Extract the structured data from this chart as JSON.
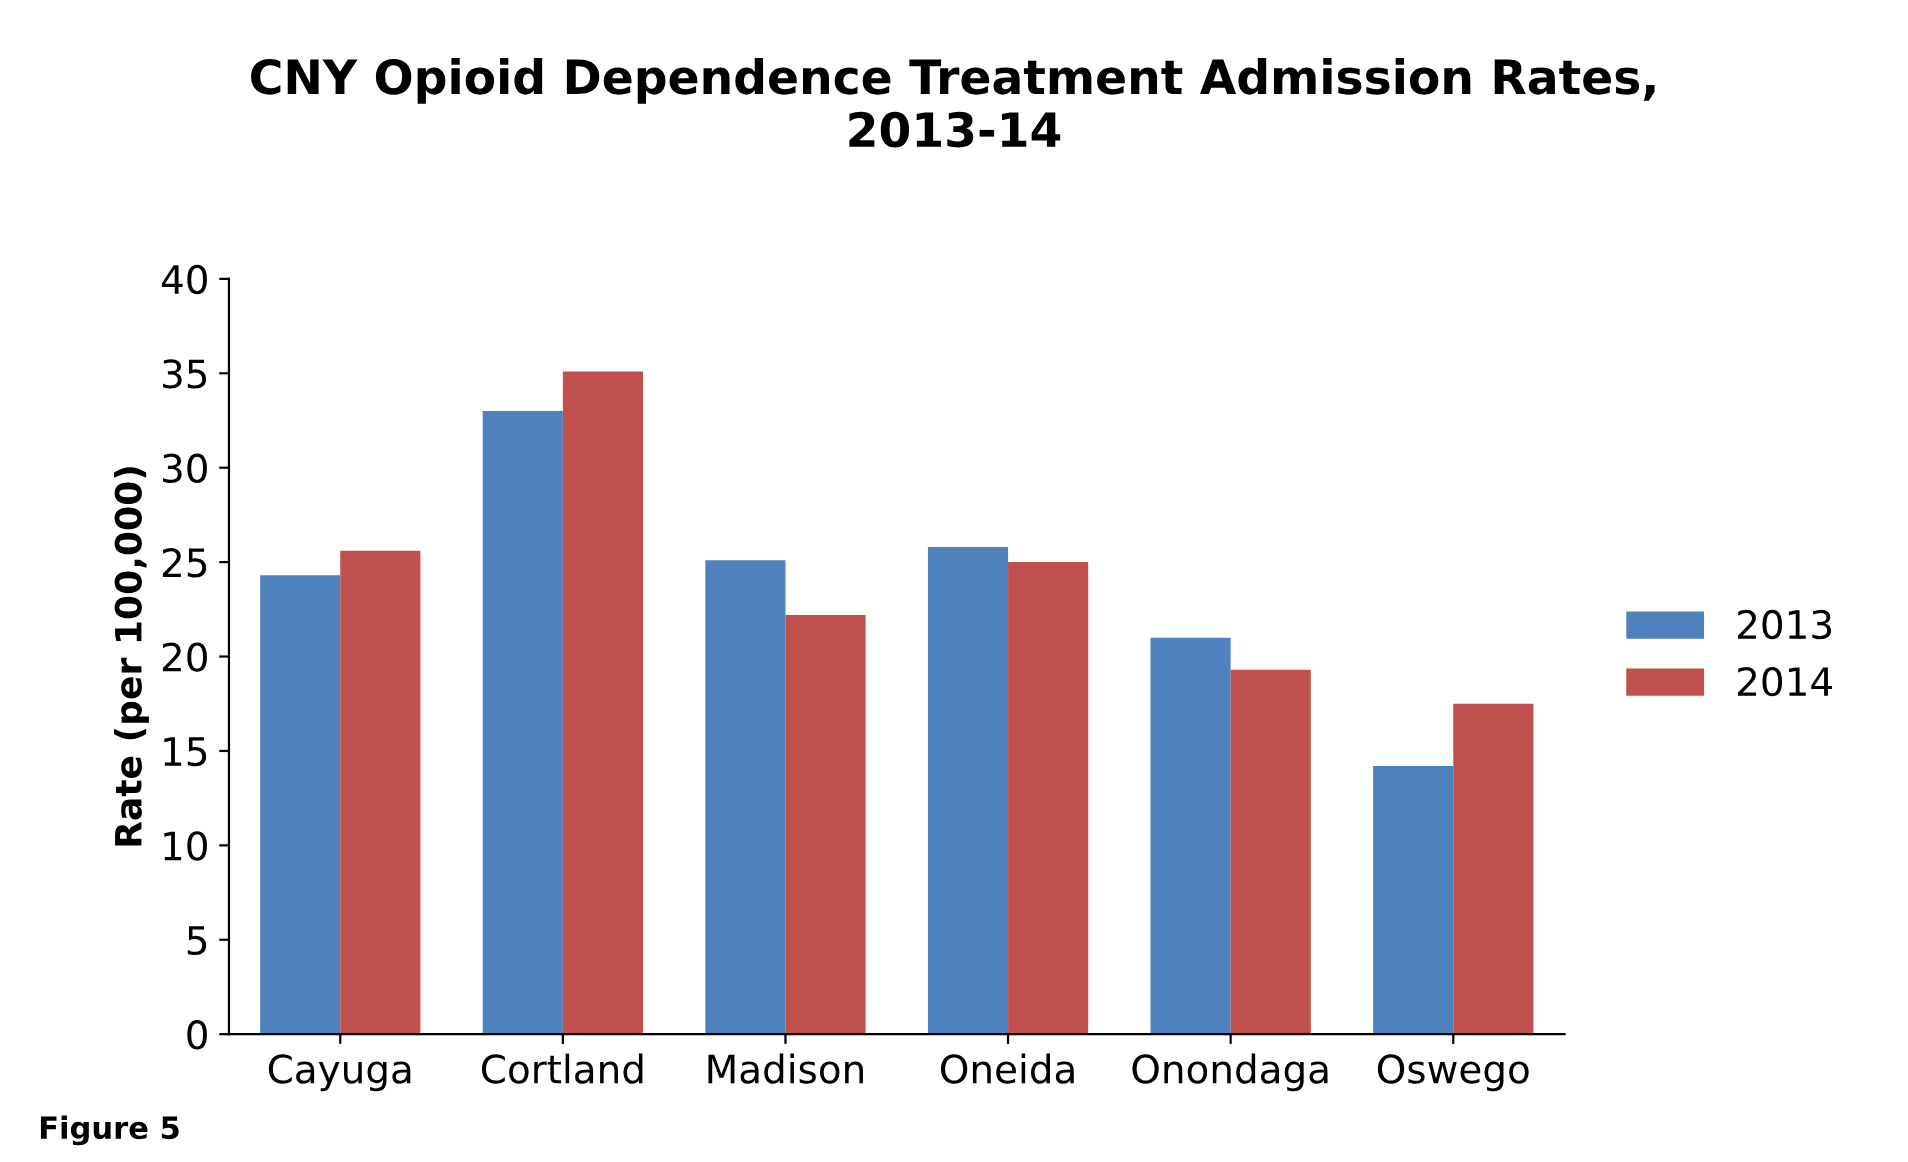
{
  "chart_data": {
    "type": "bar",
    "title": "CNY Opioid Dependence Treatment Admission Rates,\n2013-14",
    "ylabel": "Rate (per 100,000)",
    "categories": [
      "Cayuga",
      "Cortland",
      "Madison",
      "Oneida",
      "Onondaga",
      "Oswego"
    ],
    "series": [
      {
        "name": "2013",
        "color": "#4f81bd",
        "values": [
          24.3,
          33,
          25.1,
          25.8,
          21,
          14.2
        ]
      },
      {
        "name": "2014",
        "color": "#c0504d",
        "values": [
          25.6,
          35.1,
          22.2,
          25,
          19.3,
          17.5
        ]
      }
    ],
    "ylim": [
      0,
      40
    ],
    "yticks": [
      0,
      5,
      10,
      15,
      20,
      25,
      30,
      35,
      40
    ],
    "legend": "right",
    "grid": false,
    "annotations": [
      "Figure 5"
    ]
  }
}
